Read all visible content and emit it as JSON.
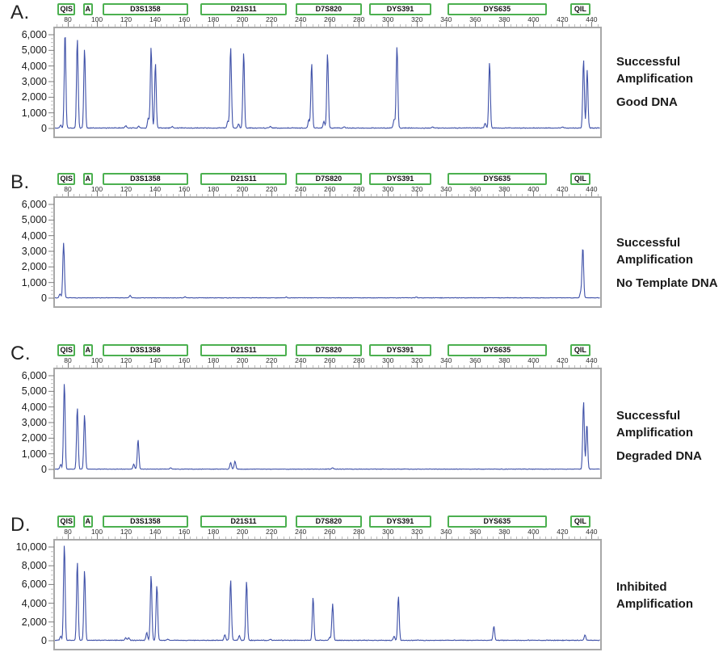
{
  "colors": {
    "trace": "#3f51a8",
    "marker_box_border": "#4cb050",
    "plot_border": "#a8a8a8"
  },
  "figure": {
    "markers": [
      {
        "label": "QIS",
        "start": 73,
        "end": 85
      },
      {
        "label": "A",
        "start": 90.5,
        "end": 97
      },
      {
        "label": "D3S1358",
        "start": 104,
        "end": 162.5
      },
      {
        "label": "D21S11",
        "start": 171,
        "end": 230.5
      },
      {
        "label": "D7S820",
        "start": 236.5,
        "end": 282
      },
      {
        "label": "DYS391",
        "start": 287,
        "end": 330
      },
      {
        "label": "DYS635",
        "start": 341,
        "end": 409
      },
      {
        "label": "QIL",
        "start": 425.5,
        "end": 439
      }
    ],
    "x_axis": {
      "min": 70,
      "max": 447,
      "labels": [
        "80",
        "100",
        "120",
        "140",
        "160",
        "180",
        "200",
        "220",
        "240",
        "260",
        "280",
        "300",
        "320",
        "340",
        "360",
        "380",
        "400",
        "420",
        "440"
      ],
      "label_first": 80,
      "label_step": 20,
      "minor_first": 72,
      "minor_last": 444,
      "minor_step": 4
    }
  },
  "chart_data": [
    {
      "id": "A",
      "type": "line",
      "panel_label": "A.",
      "caption": {
        "line1": "Successful",
        "line2": "Amplification",
        "subtitle": "Good DNA"
      },
      "y_axis": {
        "ymax": 6000,
        "tick_step": 1000,
        "minor_step": 250,
        "tick_labels": [
          "6,000",
          "5,000",
          "4,000",
          "3,000",
          "2,000",
          "1,000",
          "0"
        ]
      },
      "noise": 60,
      "peaks": [
        [
          74,
          180
        ],
        [
          77,
          6150
        ],
        [
          85.5,
          5700
        ],
        [
          90.5,
          5100
        ],
        [
          119,
          140
        ],
        [
          128,
          110
        ],
        [
          134.5,
          620
        ],
        [
          136.5,
          5200
        ],
        [
          139.5,
          4150
        ],
        [
          151,
          90
        ],
        [
          189.5,
          420
        ],
        [
          191.5,
          5200
        ],
        [
          197,
          260
        ],
        [
          200.5,
          4850
        ],
        [
          219,
          90
        ],
        [
          245.5,
          520
        ],
        [
          247.5,
          4150
        ],
        [
          256,
          420
        ],
        [
          258.5,
          4800
        ],
        [
          270,
          80
        ],
        [
          304.5,
          560
        ],
        [
          306.5,
          5250
        ],
        [
          331,
          70
        ],
        [
          367.5,
          300
        ],
        [
          370.5,
          4200
        ],
        [
          421,
          80
        ],
        [
          435.5,
          4400
        ],
        [
          438,
          3700
        ]
      ]
    },
    {
      "id": "B",
      "type": "line",
      "panel_label": "B.",
      "caption": {
        "line1": "Successful",
        "line2": "Amplification",
        "subtitle": "No Template DNA"
      },
      "y_axis": {
        "ymax": 6000,
        "tick_step": 1000,
        "minor_step": 250,
        "tick_labels": [
          "6,000",
          "5,000",
          "4,000",
          "3,000",
          "2,000",
          "1,000",
          "0"
        ]
      },
      "noise": 40,
      "peaks": [
        [
          73.5,
          260
        ],
        [
          76,
          3500
        ],
        [
          122,
          150
        ],
        [
          160,
          60
        ],
        [
          230,
          50
        ],
        [
          320,
          50
        ],
        [
          433.5,
          350
        ],
        [
          435,
          3250
        ]
      ]
    },
    {
      "id": "C",
      "type": "line",
      "panel_label": "C.",
      "caption": {
        "line1": "Successful",
        "line2": "Amplification",
        "subtitle": "Degraded DNA"
      },
      "y_axis": {
        "ymax": 6000,
        "tick_step": 1000,
        "minor_step": 250,
        "tick_labels": [
          "6,000",
          "5,000",
          "4,000",
          "3,000",
          "2,000",
          "1,000",
          "0"
        ]
      },
      "noise": 40,
      "peaks": [
        [
          74,
          300
        ],
        [
          76.5,
          5550
        ],
        [
          85.5,
          3950
        ],
        [
          90.5,
          3500
        ],
        [
          124.5,
          330
        ],
        [
          127.5,
          1900
        ],
        [
          150,
          90
        ],
        [
          191.5,
          420
        ],
        [
          194.5,
          500
        ],
        [
          262,
          90
        ],
        [
          435.5,
          4350
        ],
        [
          437.8,
          2900
        ]
      ]
    },
    {
      "id": "D",
      "type": "line",
      "panel_label": "D.",
      "caption": {
        "line1": "Inhibited",
        "line2": "Amplification",
        "subtitle": ""
      },
      "y_axis": {
        "ymax": 10000,
        "tick_step": 2000,
        "minor_step": 500,
        "tick_labels": [
          "10,000",
          "8,000",
          "6,000",
          "4,000",
          "2,000",
          "0"
        ]
      },
      "noise": 90,
      "peaks": [
        [
          74,
          400
        ],
        [
          76.5,
          10250
        ],
        [
          85.5,
          8400
        ],
        [
          90.5,
          7500
        ],
        [
          119,
          280
        ],
        [
          121,
          250
        ],
        [
          133.5,
          800
        ],
        [
          136.5,
          7000
        ],
        [
          140.5,
          5900
        ],
        [
          148,
          150
        ],
        [
          187.5,
          600
        ],
        [
          191.5,
          6500
        ],
        [
          197.5,
          500
        ],
        [
          202.5,
          6300
        ],
        [
          219,
          120
        ],
        [
          248.5,
          4600
        ],
        [
          260,
          300
        ],
        [
          262,
          3900
        ],
        [
          304.5,
          420
        ],
        [
          307.5,
          4700
        ],
        [
          373.5,
          1500
        ],
        [
          436.5,
          600
        ]
      ]
    }
  ]
}
